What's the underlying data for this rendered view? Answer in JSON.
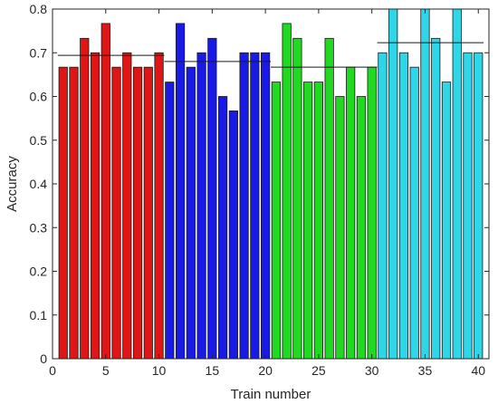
{
  "chart_data": {
    "type": "bar",
    "xlabel": "Train number",
    "ylabel": "Accuracy",
    "xlim": [
      0,
      41
    ],
    "ylim": [
      0,
      0.8
    ],
    "xticks": [
      0,
      5,
      10,
      15,
      20,
      25,
      30,
      35,
      40
    ],
    "yticks": [
      0,
      0.1,
      0.2,
      0.3,
      0.4,
      0.5,
      0.6,
      0.7,
      0.8
    ],
    "grid": false,
    "series": [
      {
        "color": "#e01515",
        "x": [
          1,
          2,
          3,
          4,
          5,
          6,
          7,
          8,
          9,
          10
        ],
        "values": [
          0.667,
          0.667,
          0.733,
          0.7,
          0.767,
          0.667,
          0.7,
          0.667,
          0.667,
          0.7
        ],
        "mean": 0.694
      },
      {
        "color": "#1a1ae6",
        "x": [
          11,
          12,
          13,
          14,
          15,
          16,
          17,
          18,
          19,
          20
        ],
        "values": [
          0.633,
          0.767,
          0.667,
          0.7,
          0.733,
          0.6,
          0.567,
          0.7,
          0.7,
          0.7
        ],
        "mean": 0.68
      },
      {
        "color": "#22d922",
        "x": [
          21,
          22,
          23,
          24,
          25,
          26,
          27,
          28,
          29,
          30
        ],
        "values": [
          0.633,
          0.767,
          0.733,
          0.633,
          0.633,
          0.733,
          0.6,
          0.667,
          0.6,
          0.667
        ],
        "mean": 0.667
      },
      {
        "color": "#2fd6e8",
        "x": [
          31,
          32,
          33,
          34,
          35,
          36,
          37,
          38,
          39,
          40
        ],
        "values": [
          0.7,
          0.8,
          0.7,
          0.667,
          0.8,
          0.733,
          0.633,
          0.8,
          0.7,
          0.7
        ],
        "mean": 0.723
      }
    ]
  }
}
